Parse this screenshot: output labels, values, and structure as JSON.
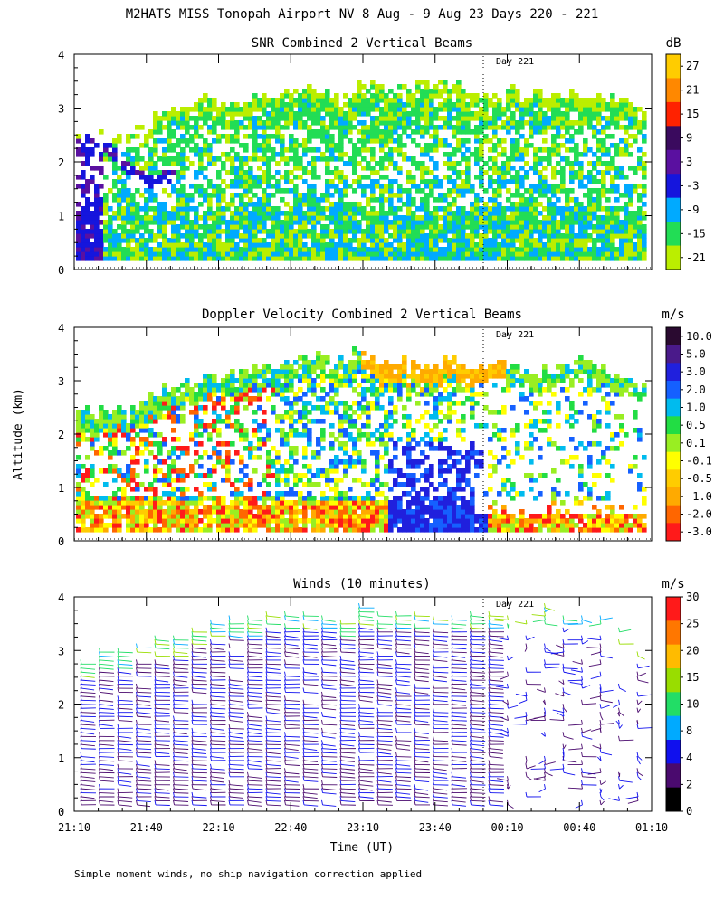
{
  "page_title": "M2HATS MISS Tonopah Airport NV   8 Aug -  9 Aug 23 Days 220 - 221",
  "footnote": "Simple moment winds, no ship navigation correction applied",
  "y_axis_label": "Altitude (km)",
  "x_axis_label": "Time (UT)",
  "day_marker_label": "Day 221",
  "chart_data": [
    {
      "type": "heatmap",
      "title": "SNR Combined 2 Vertical Beams",
      "unit": "dB",
      "x_ticks": [],
      "y_ticks": [
        "0",
        "1",
        "2",
        "3",
        "4"
      ],
      "ylim": [
        0,
        4
      ],
      "colorbar_labels": [
        "27",
        "21",
        "15",
        "9",
        "3",
        "-3",
        "-9",
        "-15",
        "-21"
      ],
      "colorbar_colors": [
        "#ffcc00",
        "#ff8800",
        "#ff2200",
        "#3a0a5e",
        "#5a10a0",
        "#1515dd",
        "#00aaff",
        "#22dd55",
        "#bbee00"
      ],
      "top_profile_km": [
        2.4,
        2.4,
        2.5,
        2.6,
        2.9,
        3.0,
        3.1,
        3.0,
        3.1,
        3.2,
        3.3,
        3.3,
        3.2,
        3.4,
        3.3,
        3.3,
        3.4,
        3.4,
        3.3,
        3.3,
        3.3,
        3.3,
        3.2,
        3.2,
        3.2,
        3.1,
        3.0
      ],
      "day_marker": true
    },
    {
      "type": "heatmap",
      "title": "Doppler Velocity Combined 2 Vertical Beams",
      "unit": "m/s",
      "x_ticks": [],
      "y_ticks": [
        "0",
        "1",
        "2",
        "3",
        "4"
      ],
      "ylim": [
        0,
        4
      ],
      "colorbar_labels": [
        "10.0",
        "5.0",
        "3.0",
        "2.0",
        "1.0",
        "0.5",
        "0.1",
        "-0.1",
        "-0.5",
        "-1.0",
        "-2.0",
        "-3.0"
      ],
      "colorbar_colors": [
        "#2a0a30",
        "#4a1a8a",
        "#2020dd",
        "#1560ff",
        "#00bbee",
        "#22dd44",
        "#99ee22",
        "#ffff00",
        "#ffcc00",
        "#ffaa00",
        "#ff6600",
        "#ff1a1a"
      ],
      "top_profile_km": [
        2.4,
        2.4,
        2.4,
        2.6,
        2.8,
        2.9,
        3.0,
        3.1,
        3.2,
        3.2,
        3.3,
        3.4,
        3.4,
        3.5,
        3.3,
        3.3,
        3.2,
        3.4,
        3.2,
        3.3,
        3.2,
        3.1,
        3.2,
        3.3,
        3.2,
        3.0,
        2.8
      ],
      "day_marker": true
    },
    {
      "type": "scatter",
      "title": "Winds (10 minutes)",
      "unit": "m/s",
      "x_ticks": [
        "21:10",
        "21:40",
        "22:10",
        "22:40",
        "23:10",
        "23:40",
        "00:10",
        "00:40",
        "01:10"
      ],
      "y_ticks": [
        "0",
        "1",
        "2",
        "3",
        "4"
      ],
      "ylim": [
        0,
        4
      ],
      "colorbar_labels": [
        "30",
        "25",
        "20",
        "15",
        "10",
        "8",
        "4",
        "2",
        "0"
      ],
      "colorbar_colors": [
        "#ff1a1a",
        "#ff7700",
        "#ffbb00",
        "#99dd00",
        "#22dd66",
        "#00aaff",
        "#1010ee",
        "#4a0a6e",
        "#000000"
      ],
      "barb_top_km": [
        2.8,
        3.0,
        3.0,
        3.1,
        3.2,
        3.2,
        3.4,
        3.5,
        3.6,
        3.6,
        3.7,
        3.7,
        3.7,
        3.7,
        3.6,
        3.8,
        3.7,
        3.7,
        3.7,
        3.7,
        3.7,
        3.7,
        3.7,
        3.6,
        3.7,
        3.8,
        3.7,
        3.6,
        3.6,
        3.4,
        3.1
      ],
      "day_marker": true
    }
  ]
}
